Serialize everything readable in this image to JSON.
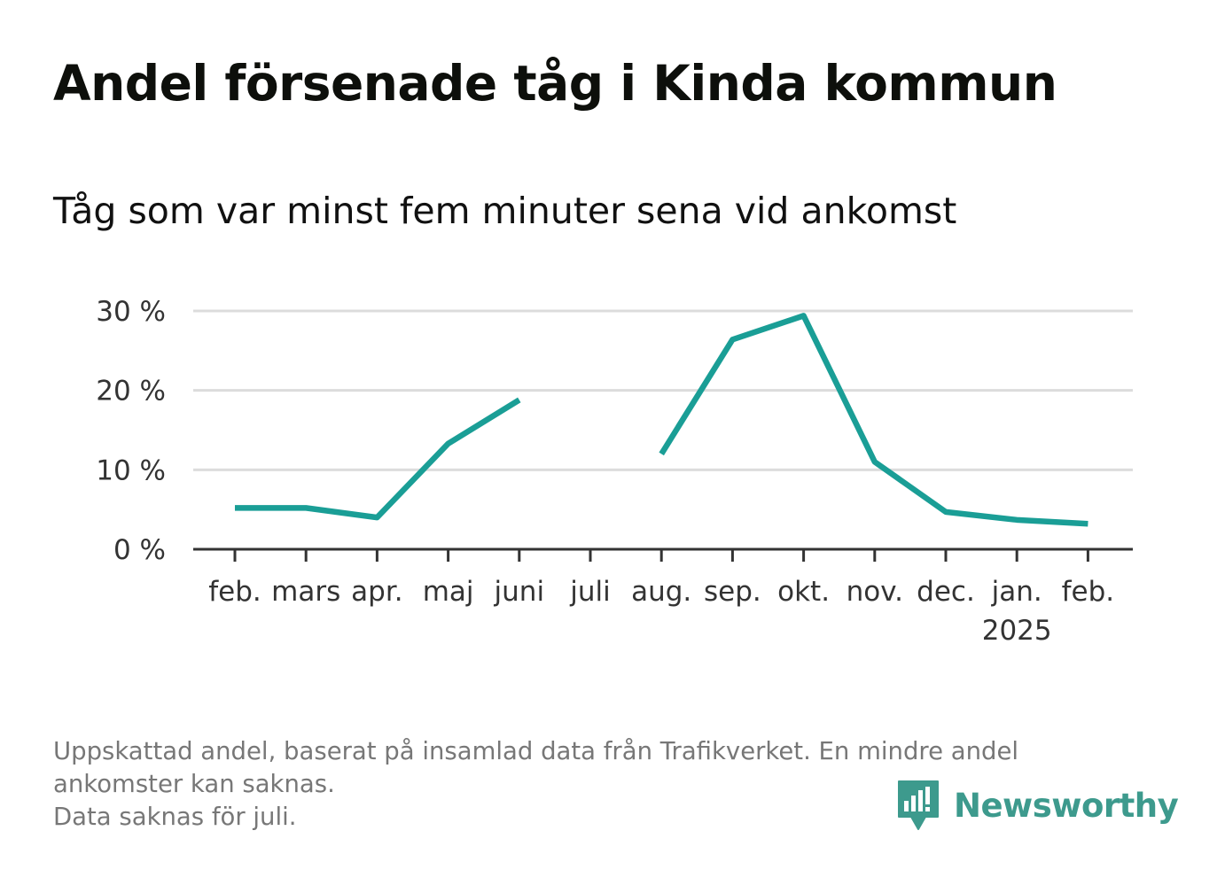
{
  "title": "Andel försenade tåg i Kinda kommun",
  "subtitle": "Tåg som var minst fem minuter sena vid ankomst",
  "footer": {
    "line1": "Uppskattad andel, baserat på insamlad data från Trafikverket. En mindre andel",
    "line2": "ankomster kan saknas.",
    "line3": "Data saknas för juli."
  },
  "brand": {
    "name": "Newsworthy",
    "color": "#3d9a8d",
    "icon": "newsworthy-logo-icon"
  },
  "colors": {
    "line": "#1a9e96",
    "grid": "#dcdcdc",
    "axis": "#333333"
  },
  "chart_data": {
    "type": "line",
    "categories": [
      "feb.",
      "mars",
      "apr.",
      "maj",
      "juni",
      "juli",
      "aug.",
      "sep.",
      "okt.",
      "nov.",
      "dec.",
      "jan.",
      "feb."
    ],
    "year_labels": [
      "",
      "",
      "",
      "",
      "",
      "",
      "",
      "",
      "",
      "",
      "",
      "2025",
      ""
    ],
    "series": [
      {
        "values": [
          5.2,
          5.2,
          4.0,
          13.3,
          18.8,
          null,
          12.0,
          26.4,
          29.4,
          11.0,
          4.7,
          3.7,
          3.2
        ]
      }
    ],
    "yticks": [
      0,
      10,
      20,
      30
    ],
    "ytick_labels": [
      "0 %",
      "10 %",
      "20 %",
      "30 %"
    ],
    "ylim": [
      0,
      30
    ],
    "grid": true,
    "legend": "none"
  }
}
